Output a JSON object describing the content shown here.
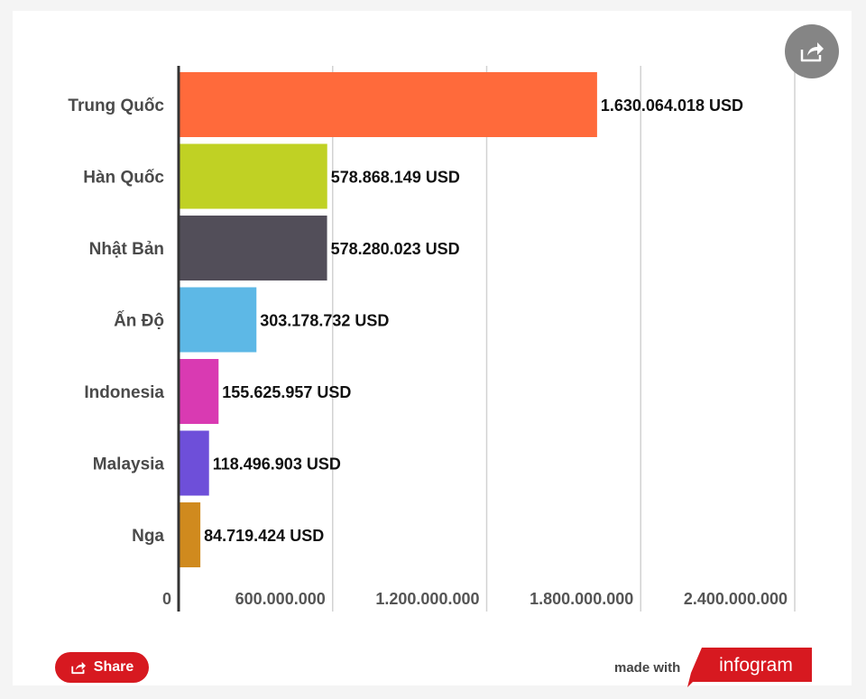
{
  "chart_data": {
    "type": "bar",
    "orientation": "horizontal",
    "categories": [
      "Trung Quốc",
      "Hàn Quốc",
      "Nhật Bản",
      "Ấn Độ",
      "Indonesia",
      "Malaysia",
      "Nga"
    ],
    "values": [
      1630064018,
      578868149,
      578280023,
      303178732,
      155625957,
      118496903,
      84719424
    ],
    "value_labels": [
      "1.630.064.018 USD",
      "578.868.149 USD",
      "578.280.023 USD",
      "303.178.732 USD",
      "155.625.957 USD",
      "118.496.903 USD",
      "84.719.424 USD"
    ],
    "colors": [
      "#ff6a3b",
      "#c0d124",
      "#524e59",
      "#5db8e6",
      "#d93ab2",
      "#6e4fd9",
      "#d08a1e"
    ],
    "xlim": [
      0,
      2400000000
    ],
    "x_ticks": [
      0,
      600000000,
      1200000000,
      1800000000,
      2400000000
    ],
    "x_tick_labels": [
      "0",
      "600.000.000",
      "1.200.000.000",
      "1.800.000.000",
      "2.400.000.000"
    ],
    "grid": true
  },
  "footer": {
    "share_label": "Share",
    "made_with": "made with",
    "brand": "infogram"
  },
  "icons": {
    "corner_share": "share-arrow-icon",
    "button_share": "share-icon"
  }
}
